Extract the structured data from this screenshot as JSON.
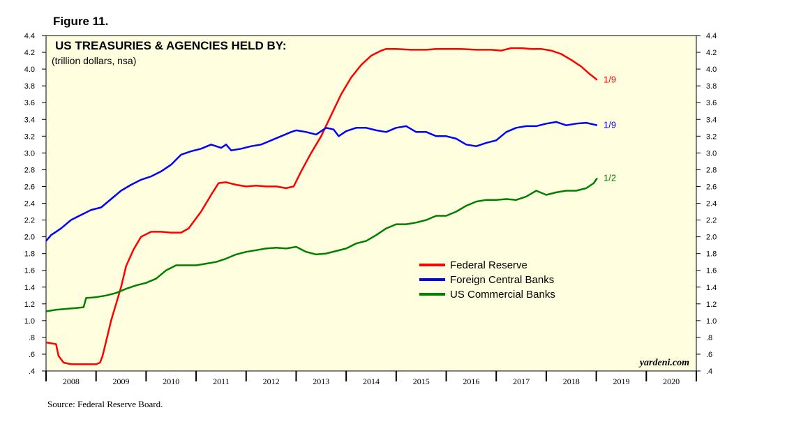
{
  "figure_label": "Figure 11.",
  "credit": "yardeni.com",
  "source": "Source: Federal Reserve Board.",
  "colors": {
    "plot_background": "#ffffe0",
    "federal_reserve": "#ff0000",
    "foreign_central_banks": "#0000ff",
    "us_commercial_banks": "#008000"
  },
  "chart_data": {
    "type": "line",
    "title": "US TREASURIES & AGENCIES HELD BY:",
    "subtitle": "(trillion dollars, nsa)",
    "xlim": [
      2008.0,
      2021.0
    ],
    "ylim": [
      0.4,
      4.4
    ],
    "xticks": [
      "2008",
      "2009",
      "2010",
      "2011",
      "2012",
      "2013",
      "2014",
      "2015",
      "2016",
      "2017",
      "2018",
      "2019",
      "2020"
    ],
    "yticks": [
      "4.4",
      "4.2",
      "4.0",
      "3.8",
      "3.6",
      "3.4",
      "3.2",
      "3.0",
      "2.8",
      "2.6",
      "2.4",
      "2.2",
      "2.0",
      "1.8",
      "1.6",
      "1.4",
      "1.2",
      "1.0",
      ".8",
      ".6",
      ".4"
    ],
    "series": [
      {
        "name": "Federal Reserve",
        "key": "federal_reserve",
        "end_label": "1/9",
        "x": [
          2008.0,
          2008.1,
          2008.2,
          2008.25,
          2008.35,
          2008.5,
          2008.7,
          2008.9,
          2009.0,
          2009.08,
          2009.13,
          2009.2,
          2009.3,
          2009.4,
          2009.5,
          2009.6,
          2009.75,
          2009.9,
          2010.1,
          2010.3,
          2010.5,
          2010.7,
          2010.85,
          2011.1,
          2011.3,
          2011.45,
          2011.6,
          2011.8,
          2012.0,
          2012.2,
          2012.4,
          2012.6,
          2012.8,
          2012.95,
          2013.1,
          2013.3,
          2013.5,
          2013.7,
          2013.9,
          2014.1,
          2014.3,
          2014.5,
          2014.7,
          2014.8,
          2015.0,
          2015.3,
          2015.6,
          2015.8,
          2016.0,
          2016.3,
          2016.6,
          2016.9,
          2017.1,
          2017.3,
          2017.5,
          2017.7,
          2017.9,
          2018.1,
          2018.3,
          2018.5,
          2018.7,
          2018.85,
          2019.02
        ],
        "y": [
          0.74,
          0.73,
          0.72,
          0.58,
          0.5,
          0.48,
          0.48,
          0.48,
          0.48,
          0.5,
          0.58,
          0.75,
          1.0,
          1.2,
          1.4,
          1.65,
          1.85,
          2.0,
          2.06,
          2.06,
          2.05,
          2.05,
          2.1,
          2.3,
          2.5,
          2.64,
          2.65,
          2.62,
          2.6,
          2.61,
          2.6,
          2.6,
          2.58,
          2.6,
          2.78,
          3.0,
          3.2,
          3.45,
          3.7,
          3.9,
          4.05,
          4.16,
          4.22,
          4.24,
          4.24,
          4.23,
          4.23,
          4.24,
          4.24,
          4.24,
          4.23,
          4.23,
          4.22,
          4.25,
          4.25,
          4.24,
          4.24,
          4.22,
          4.18,
          4.11,
          4.03,
          3.95,
          3.87
        ]
      },
      {
        "name": "Foreign Central Banks",
        "key": "foreign_central_banks",
        "end_label": "1/9",
        "x": [
          2008.0,
          2008.1,
          2008.3,
          2008.5,
          2008.7,
          2008.9,
          2009.1,
          2009.3,
          2009.5,
          2009.7,
          2009.9,
          2010.1,
          2010.3,
          2010.5,
          2010.7,
          2010.9,
          2011.1,
          2011.3,
          2011.5,
          2011.6,
          2011.7,
          2011.9,
          2012.1,
          2012.3,
          2012.5,
          2012.7,
          2012.9,
          2013.0,
          2013.2,
          2013.4,
          2013.6,
          2013.75,
          2013.85,
          2014.0,
          2014.2,
          2014.4,
          2014.6,
          2014.8,
          2015.0,
          2015.2,
          2015.4,
          2015.6,
          2015.8,
          2016.0,
          2016.2,
          2016.4,
          2016.6,
          2016.8,
          2017.0,
          2017.2,
          2017.4,
          2017.6,
          2017.8,
          2018.0,
          2018.2,
          2018.4,
          2018.6,
          2018.8,
          2019.02
        ],
        "y": [
          1.95,
          2.02,
          2.1,
          2.2,
          2.26,
          2.32,
          2.35,
          2.45,
          2.55,
          2.62,
          2.68,
          2.72,
          2.78,
          2.86,
          2.98,
          3.02,
          3.05,
          3.1,
          3.06,
          3.1,
          3.03,
          3.05,
          3.08,
          3.1,
          3.15,
          3.2,
          3.25,
          3.27,
          3.25,
          3.22,
          3.3,
          3.28,
          3.2,
          3.26,
          3.3,
          3.3,
          3.27,
          3.25,
          3.3,
          3.32,
          3.25,
          3.25,
          3.2,
          3.2,
          3.17,
          3.1,
          3.08,
          3.12,
          3.15,
          3.25,
          3.3,
          3.32,
          3.32,
          3.35,
          3.37,
          3.33,
          3.35,
          3.36,
          3.33
        ]
      },
      {
        "name": "US Commercial Banks",
        "key": "us_commercial_banks",
        "end_label": "1/2",
        "x": [
          2008.0,
          2008.2,
          2008.4,
          2008.6,
          2008.75,
          2008.8,
          2009.0,
          2009.2,
          2009.4,
          2009.6,
          2009.8,
          2010.0,
          2010.2,
          2010.4,
          2010.6,
          2010.8,
          2011.0,
          2011.2,
          2011.4,
          2011.6,
          2011.8,
          2012.0,
          2012.2,
          2012.4,
          2012.6,
          2012.8,
          2013.0,
          2013.2,
          2013.4,
          2013.6,
          2013.8,
          2014.0,
          2014.2,
          2014.4,
          2014.6,
          2014.8,
          2015.0,
          2015.2,
          2015.4,
          2015.6,
          2015.8,
          2016.0,
          2016.2,
          2016.4,
          2016.6,
          2016.8,
          2017.0,
          2017.2,
          2017.4,
          2017.6,
          2017.8,
          2018.0,
          2018.2,
          2018.4,
          2018.6,
          2018.8,
          2018.95,
          2019.02
        ],
        "y": [
          1.11,
          1.13,
          1.14,
          1.15,
          1.16,
          1.27,
          1.28,
          1.3,
          1.33,
          1.38,
          1.42,
          1.45,
          1.5,
          1.6,
          1.66,
          1.66,
          1.66,
          1.68,
          1.7,
          1.74,
          1.79,
          1.82,
          1.84,
          1.86,
          1.87,
          1.86,
          1.88,
          1.82,
          1.79,
          1.8,
          1.83,
          1.86,
          1.92,
          1.95,
          2.02,
          2.1,
          2.15,
          2.15,
          2.17,
          2.2,
          2.25,
          2.25,
          2.3,
          2.37,
          2.42,
          2.44,
          2.44,
          2.45,
          2.44,
          2.48,
          2.55,
          2.5,
          2.53,
          2.55,
          2.55,
          2.58,
          2.64,
          2.7
        ]
      }
    ],
    "legend": [
      "Federal Reserve",
      "Foreign Central Banks",
      "US Commercial Banks"
    ],
    "legend_position": "lower-right",
    "grid": false
  }
}
